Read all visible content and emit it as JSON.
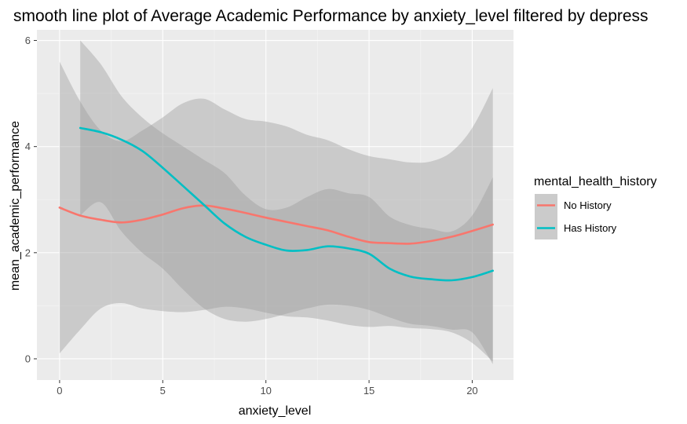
{
  "chart_data": {
    "type": "line",
    "title": "smooth line plot of Average Academic Performance by anxiety_level filtered by depress",
    "xlabel": "anxiety_level",
    "ylabel": "mean_academic_performance",
    "xlim": [
      -1.1,
      22.0
    ],
    "ylim": [
      -0.4,
      6.2
    ],
    "x_ticks": [
      0,
      5,
      10,
      15,
      20
    ],
    "y_ticks": [
      0,
      2,
      4,
      6
    ],
    "grid": true,
    "legend": {
      "title": "mental_health_history",
      "position": "right"
    },
    "series": [
      {
        "name": "No History",
        "color": "#F8766D",
        "x": [
          0,
          1,
          2,
          3,
          4,
          5,
          6,
          7,
          8,
          9,
          10,
          11,
          12,
          13,
          14,
          15,
          16,
          17,
          18,
          19,
          20,
          21
        ],
        "y": [
          2.85,
          2.7,
          2.62,
          2.57,
          2.62,
          2.72,
          2.84,
          2.89,
          2.83,
          2.75,
          2.66,
          2.58,
          2.5,
          2.42,
          2.3,
          2.2,
          2.18,
          2.17,
          2.22,
          2.3,
          2.41,
          2.53
        ],
        "lower": [
          0.1,
          0.55,
          0.95,
          1.05,
          0.95,
          0.9,
          0.88,
          0.92,
          0.98,
          0.95,
          0.87,
          0.8,
          0.78,
          0.72,
          0.64,
          0.6,
          0.62,
          0.58,
          0.56,
          0.5,
          0.3,
          -0.05
        ],
        "upper": [
          5.6,
          4.85,
          4.3,
          4.1,
          4.3,
          4.55,
          4.82,
          4.9,
          4.7,
          4.52,
          4.47,
          4.38,
          4.22,
          4.12,
          3.95,
          3.82,
          3.76,
          3.7,
          3.72,
          3.9,
          4.35,
          5.1
        ]
      },
      {
        "name": "Has History",
        "color": "#00BFC4",
        "x": [
          1,
          2,
          3,
          4,
          5,
          6,
          7,
          8,
          9,
          10,
          11,
          12,
          13,
          14,
          15,
          16,
          17,
          18,
          19,
          20,
          21
        ],
        "y": [
          4.35,
          4.27,
          4.13,
          3.92,
          3.6,
          3.25,
          2.9,
          2.55,
          2.3,
          2.15,
          2.04,
          2.05,
          2.12,
          2.08,
          1.98,
          1.7,
          1.55,
          1.5,
          1.48,
          1.54,
          1.66
        ],
        "lower": [
          2.7,
          2.95,
          2.4,
          2.0,
          1.7,
          1.3,
          0.95,
          0.75,
          0.7,
          0.75,
          0.85,
          0.95,
          1.02,
          1.0,
          0.92,
          0.78,
          0.66,
          0.62,
          0.55,
          0.5,
          -0.1
        ],
        "upper": [
          6.0,
          5.55,
          4.95,
          4.55,
          4.25,
          4.0,
          3.75,
          3.5,
          3.08,
          2.82,
          2.85,
          3.05,
          3.2,
          3.12,
          3.05,
          2.68,
          2.52,
          2.45,
          2.4,
          2.7,
          3.42
        ]
      }
    ]
  }
}
